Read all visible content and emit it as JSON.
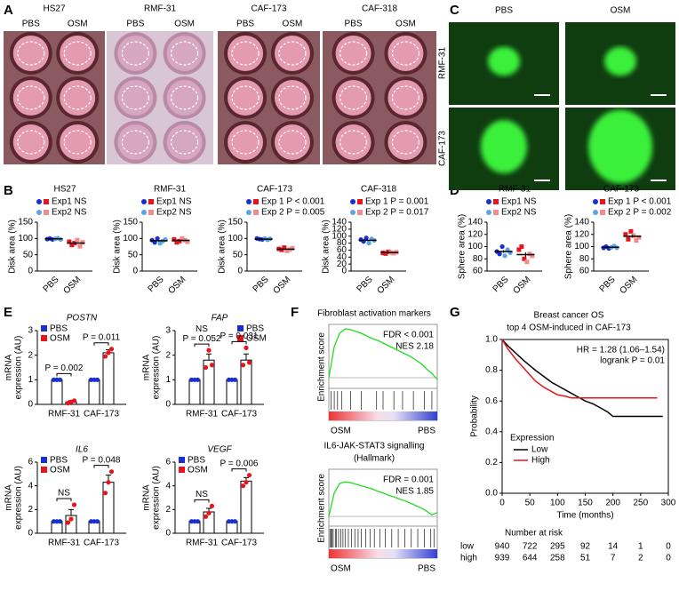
{
  "panels": {
    "A": {
      "label": "A",
      "groups": [
        "HS27",
        "RMF-31",
        "CAF-173",
        "CAF-318"
      ],
      "conditions": [
        "PBS",
        "OSM"
      ]
    },
    "B": {
      "label": "B"
    },
    "C": {
      "label": "C",
      "columns": [
        "PBS",
        "OSM"
      ],
      "rows": [
        "RMF-31",
        "CAF-173"
      ]
    },
    "D": {
      "label": "D"
    },
    "E": {
      "label": "E"
    },
    "F": {
      "label": "F"
    },
    "G": {
      "label": "G"
    }
  },
  "chart_data": [
    {
      "type": "dot",
      "title": "HS27",
      "ylabel": "Disk area (%)",
      "categories": [
        "PBS",
        "OSM"
      ],
      "ylim": [
        0,
        150
      ],
      "yticks": [
        0,
        50,
        100,
        150
      ],
      "series": [
        {
          "name": "Exp1 NS",
          "colors": [
            "#1a2fd0",
            "#e8141b"
          ],
          "values": [
            [
              98,
              100,
              97
            ],
            [
              90,
              80,
              86
            ]
          ]
        },
        {
          "name": "Exp2 NS",
          "colors": [
            "#5ba3e6",
            "#f28c8c"
          ],
          "values": [
            [
              99,
              101,
              97
            ],
            [
              95,
              76,
              88
            ]
          ]
        }
      ],
      "mean": [
        99,
        86
      ],
      "sem": [
        1,
        3
      ]
    },
    {
      "type": "dot",
      "title": "RMF-31",
      "ylabel": "Disk area (%)",
      "categories": [
        "PBS",
        "OSM"
      ],
      "ylim": [
        0,
        150
      ],
      "yticks": [
        0,
        50,
        100,
        150
      ],
      "series": [
        {
          "name": "Exp1 NS",
          "colors": [
            "#1a2fd0",
            "#e8141b"
          ],
          "values": [
            [
              95,
              88,
              100
            ],
            [
              97,
              88,
              92
            ]
          ]
        },
        {
          "name": "Exp2 NS",
          "colors": [
            "#5ba3e6",
            "#f28c8c"
          ],
          "values": [
            [
              85,
              92,
              97
            ],
            [
              100,
              95,
              90
            ]
          ]
        }
      ],
      "mean": [
        93,
        94
      ],
      "sem": [
        2.5,
        2
      ]
    },
    {
      "type": "dot",
      "title": "CAF-173",
      "ylabel": "Disk area (%)",
      "categories": [
        "PBS",
        "OSM"
      ],
      "ylim": [
        0,
        150
      ],
      "yticks": [
        0,
        50,
        100,
        150
      ],
      "series": [
        {
          "name": "Exp 1 P < 0.001",
          "colors": [
            "#1a2fd0",
            "#e8141b"
          ],
          "values": [
            [
              100,
              98,
              97
            ],
            [
              68,
              65,
              72
            ]
          ]
        },
        {
          "name": "Exp 2 P = 0.005",
          "colors": [
            "#5ba3e6",
            "#f28c8c"
          ],
          "values": [
            [
              100,
              96,
              99
            ],
            [
              62,
              66,
              70
            ]
          ]
        }
      ],
      "mean": [
        98,
        67
      ],
      "sem": [
        0.7,
        1.5
      ]
    },
    {
      "type": "dot",
      "title": "CAF-318",
      "ylabel": "Disk area (%)",
      "categories": [
        "PBS",
        "OSM"
      ],
      "ylim": [
        0,
        140
      ],
      "yticks": [
        0,
        20,
        40,
        60,
        80,
        100,
        120,
        140
      ],
      "series": [
        {
          "name": "Exp 1 P = 0.001",
          "colors": [
            "#1a2fd0",
            "#e8141b"
          ],
          "values": [
            [
              90,
              85,
              95
            ],
            [
              52,
              50,
              55
            ]
          ]
        },
        {
          "name": "Exp 2 P = 0.017",
          "colors": [
            "#5ba3e6",
            "#f28c8c"
          ],
          "values": [
            [
              80,
              92,
              88
            ],
            [
              53,
              51,
              54
            ]
          ]
        }
      ],
      "mean": [
        88,
        53
      ],
      "sem": [
        2.3,
        0.8
      ]
    },
    {
      "type": "dot",
      "title": "RMF-31",
      "ylabel": "Sphere area (%)",
      "categories": [
        "PBS",
        "OSM"
      ],
      "ylim": [
        60,
        140
      ],
      "yticks": [
        60,
        80,
        100,
        120,
        140
      ],
      "series": [
        {
          "name": "Exp1 NS",
          "colors": [
            "#1a2fd0",
            "#e8141b"
          ],
          "values": [
            [
              92,
              88,
              100
            ],
            [
              95,
              100,
              80
            ]
          ]
        },
        {
          "name": "Exp2 NS",
          "colors": [
            "#5ba3e6",
            "#f28c8c"
          ],
          "values": [
            [
              85,
              95,
              90
            ],
            [
              75,
              88,
              85
            ]
          ]
        }
      ],
      "mean": [
        92,
        87
      ],
      "sem": [
        2.2,
        3.8
      ]
    },
    {
      "type": "dot",
      "title": "CAF-173",
      "ylabel": "Sphere area (%)",
      "categories": [
        "PBS",
        "OSM"
      ],
      "ylim": [
        60,
        140
      ],
      "yticks": [
        60,
        80,
        100,
        120,
        140
      ],
      "series": [
        {
          "name": "Exp 1 P < 0.001",
          "colors": [
            "#1a2fd0",
            "#e8141b"
          ],
          "values": [
            [
              98,
              100,
              97
            ],
            [
              120,
              112,
              125
            ]
          ]
        },
        {
          "name": "Exp 2 P = 0.002",
          "colors": [
            "#5ba3e6",
            "#f28c8c"
          ],
          "values": [
            [
              99,
              101,
              98
            ],
            [
              118,
              110,
              115
            ]
          ]
        }
      ],
      "mean": [
        99,
        117
      ],
      "sem": [
        0.6,
        2.2
      ]
    },
    {
      "type": "bar",
      "title": "POSTN",
      "ylabel": [
        "mRNA",
        "expression (AU)"
      ],
      "categories": [
        "RMF-31",
        "CAF-173"
      ],
      "ylim": [
        0,
        3
      ],
      "yticks": [
        0,
        1,
        2,
        3
      ],
      "legend": "top-left",
      "series": [
        {
          "name": "PBS",
          "color": "#1a2fd0",
          "values": [
            1,
            1
          ],
          "errors": [
            0,
            0
          ],
          "points": [
            [
              1,
              1,
              1
            ],
            [
              1,
              1,
              1
            ]
          ]
        },
        {
          "name": "OSM",
          "color": "#e8141b",
          "values": [
            0.1,
            2.1
          ],
          "errors": [
            0.05,
            0.12
          ],
          "points": [
            [
              0.05,
              0.1,
              0.15
            ],
            [
              1.95,
              2.1,
              2.25
            ]
          ]
        }
      ],
      "annotations": [
        [
          "P = 0.002"
        ],
        [
          "P = 0.011"
        ]
      ]
    },
    {
      "type": "bar",
      "title": "FAP",
      "ylabel": [
        "mRNA",
        "expression (AU)"
      ],
      "categories": [
        "RMF-31",
        "CAF-173"
      ],
      "ylim": [
        0,
        3
      ],
      "yticks": [
        0,
        1,
        2,
        3
      ],
      "legend": "top-right",
      "series": [
        {
          "name": "PBS",
          "color": "#1a2fd0",
          "values": [
            1,
            1
          ],
          "errors": [
            0,
            0
          ],
          "points": [
            [
              1,
              1,
              1
            ],
            [
              1,
              1,
              1
            ]
          ]
        },
        {
          "name": "OSM",
          "color": "#e8141b",
          "values": [
            1.8,
            1.8
          ],
          "errors": [
            0.25,
            0.25
          ],
          "points": [
            [
              1.5,
              2.2,
              1.6
            ],
            [
              1.6,
              2.3,
              1.7
            ]
          ]
        }
      ],
      "annotations": [
        [
          "NS",
          "P = 0.052"
        ],
        [
          "P = 0.031"
        ]
      ]
    },
    {
      "type": "bar",
      "title": "IL6",
      "ylabel": [
        "mRNA",
        "expression (AU)"
      ],
      "categories": [
        "RMF-31",
        "CAF-173"
      ],
      "ylim": [
        0,
        6
      ],
      "yticks": [
        0,
        2,
        4,
        6
      ],
      "legend": "top-left",
      "series": [
        {
          "name": "PBS",
          "color": "#1a2fd0",
          "values": [
            1,
            1
          ],
          "errors": [
            0,
            0
          ],
          "points": [
            [
              1,
              1,
              1
            ],
            [
              1,
              1,
              1
            ]
          ]
        },
        {
          "name": "OSM",
          "color": "#e8141b",
          "values": [
            1.5,
            4.3
          ],
          "errors": [
            0.5,
            0.6
          ],
          "points": [
            [
              0.9,
              1.2,
              2.4
            ],
            [
              3.4,
              4.3,
              5.2
            ]
          ]
        }
      ],
      "annotations": [
        [
          "NS"
        ],
        [
          "P = 0.048"
        ]
      ]
    },
    {
      "type": "bar",
      "title": "VEGF",
      "ylabel": [
        "mRNA",
        "expression (AU)"
      ],
      "categories": [
        "RMF-31",
        "CAF-173"
      ],
      "ylim": [
        0,
        6
      ],
      "yticks": [
        0,
        2,
        4,
        6
      ],
      "legend": "top-left",
      "series": [
        {
          "name": "PBS",
          "color": "#1a2fd0",
          "values": [
            1,
            1
          ],
          "errors": [
            0,
            0
          ],
          "points": [
            [
              1,
              1,
              1
            ],
            [
              1,
              1,
              1
            ]
          ]
        },
        {
          "name": "OSM",
          "color": "#e8141b",
          "values": [
            1.8,
            4.4
          ],
          "errors": [
            0.3,
            0.3
          ],
          "points": [
            [
              1.4,
              1.7,
              2.3
            ],
            [
              4.0,
              4.3,
              4.9
            ]
          ]
        }
      ],
      "annotations": [
        [
          "NS"
        ],
        [
          "P = 0.006"
        ]
      ]
    },
    {
      "type": "gsea",
      "title": [
        "Fibroblast activation markers"
      ],
      "ylabel": "Enrichment score",
      "stats": [
        "FDR < 0.001",
        "NES 2.18"
      ],
      "xlabels": [
        "OSM",
        "PBS"
      ],
      "ylim": [
        -0.1,
        0.6
      ],
      "color": "#22dd22",
      "x": [
        0,
        5,
        10,
        15,
        20,
        25,
        30,
        35,
        40,
        45,
        50,
        55,
        60,
        65,
        70,
        75,
        80,
        85,
        90,
        95,
        100
      ],
      "values": [
        0,
        0.35,
        0.5,
        0.55,
        0.54,
        0.52,
        0.5,
        0.47,
        0.44,
        0.42,
        0.39,
        0.36,
        0.33,
        0.3,
        0.27,
        0.24,
        0.2,
        0.16,
        0.1,
        0.05,
        -0.02
      ],
      "hits": [
        2,
        5,
        8,
        12,
        20,
        30,
        44,
        50,
        60,
        68,
        78,
        88,
        95
      ]
    },
    {
      "type": "gsea",
      "title": [
        "IL6-JAK-STAT3 signalling",
        "(Hallmark)"
      ],
      "ylabel": "Enrichment score",
      "stats": [
        "FDR = 0.001",
        "NES 1.85"
      ],
      "xlabels": [
        "OSM",
        "PBS"
      ],
      "ylim": [
        -0.1,
        0.6
      ],
      "color": "#22dd22",
      "x": [
        0,
        5,
        10,
        15,
        20,
        25,
        30,
        35,
        40,
        45,
        50,
        55,
        60,
        65,
        70,
        75,
        80,
        85,
        90,
        95,
        100
      ],
      "values": [
        0,
        0.3,
        0.42,
        0.44,
        0.43,
        0.41,
        0.39,
        0.37,
        0.35,
        0.32,
        0.3,
        0.27,
        0.25,
        0.22,
        0.2,
        0.17,
        0.14,
        0.11,
        0.07,
        0.02,
        0.05
      ],
      "hits": [
        1,
        2,
        3,
        4,
        6,
        7,
        9,
        11,
        13,
        15,
        18,
        21,
        24,
        27,
        30,
        34,
        38,
        42,
        47,
        52,
        58,
        64,
        70,
        76,
        82,
        88,
        94,
        97
      ]
    },
    {
      "type": "km",
      "title": [
        "Breast cancer OS",
        "top 4 OSM-induced in CAF-173"
      ],
      "annotations": [
        "HR = 1.28 (1.06–1.54)",
        "logrank P = 0.01"
      ],
      "xlabel": "Time (months)",
      "ylabel": "Probability",
      "xlim": [
        0,
        300
      ],
      "xticks": [
        0,
        50,
        100,
        150,
        200,
        250,
        300
      ],
      "ylim": [
        0,
        1
      ],
      "yticks": [
        {
          "value": 0,
          "label": "0.0"
        },
        0.2,
        0.4,
        0.6,
        0.8,
        {
          "value": 1,
          "label": "1.0"
        }
      ],
      "legend_title": "Expression",
      "series": [
        {
          "name": "Low",
          "color": "#000000",
          "x": [
            0,
            10,
            25,
            40,
            50,
            60,
            75,
            90,
            100,
            115,
            125,
            140,
            150,
            165,
            175,
            190,
            200,
            210,
            230,
            250,
            290
          ],
          "values": [
            1,
            0.96,
            0.91,
            0.86,
            0.83,
            0.8,
            0.76,
            0.72,
            0.7,
            0.67,
            0.65,
            0.62,
            0.6,
            0.58,
            0.56,
            0.53,
            0.5,
            0.5,
            0.5,
            0.5,
            0.5
          ]
        },
        {
          "name": "High",
          "color": "#e8141b",
          "x": [
            0,
            10,
            25,
            40,
            50,
            60,
            75,
            90,
            100,
            115,
            125,
            140,
            150,
            165,
            175,
            190,
            200,
            230,
            280
          ],
          "values": [
            1,
            0.94,
            0.87,
            0.81,
            0.77,
            0.73,
            0.69,
            0.66,
            0.64,
            0.63,
            0.62,
            0.62,
            0.62,
            0.62,
            0.62,
            0.62,
            0.62,
            0.62,
            0.62
          ]
        }
      ],
      "risk_table": {
        "title": "Number at risk",
        "rows": [
          {
            "name": "low",
            "color": "#000000",
            "values": [
              940,
              722,
              295,
              92,
              14,
              1,
              0
            ]
          },
          {
            "name": "high",
            "color": "#e8141b",
            "values": [
              939,
              644,
              258,
              51,
              7,
              2,
              0
            ]
          }
        ]
      }
    }
  ]
}
